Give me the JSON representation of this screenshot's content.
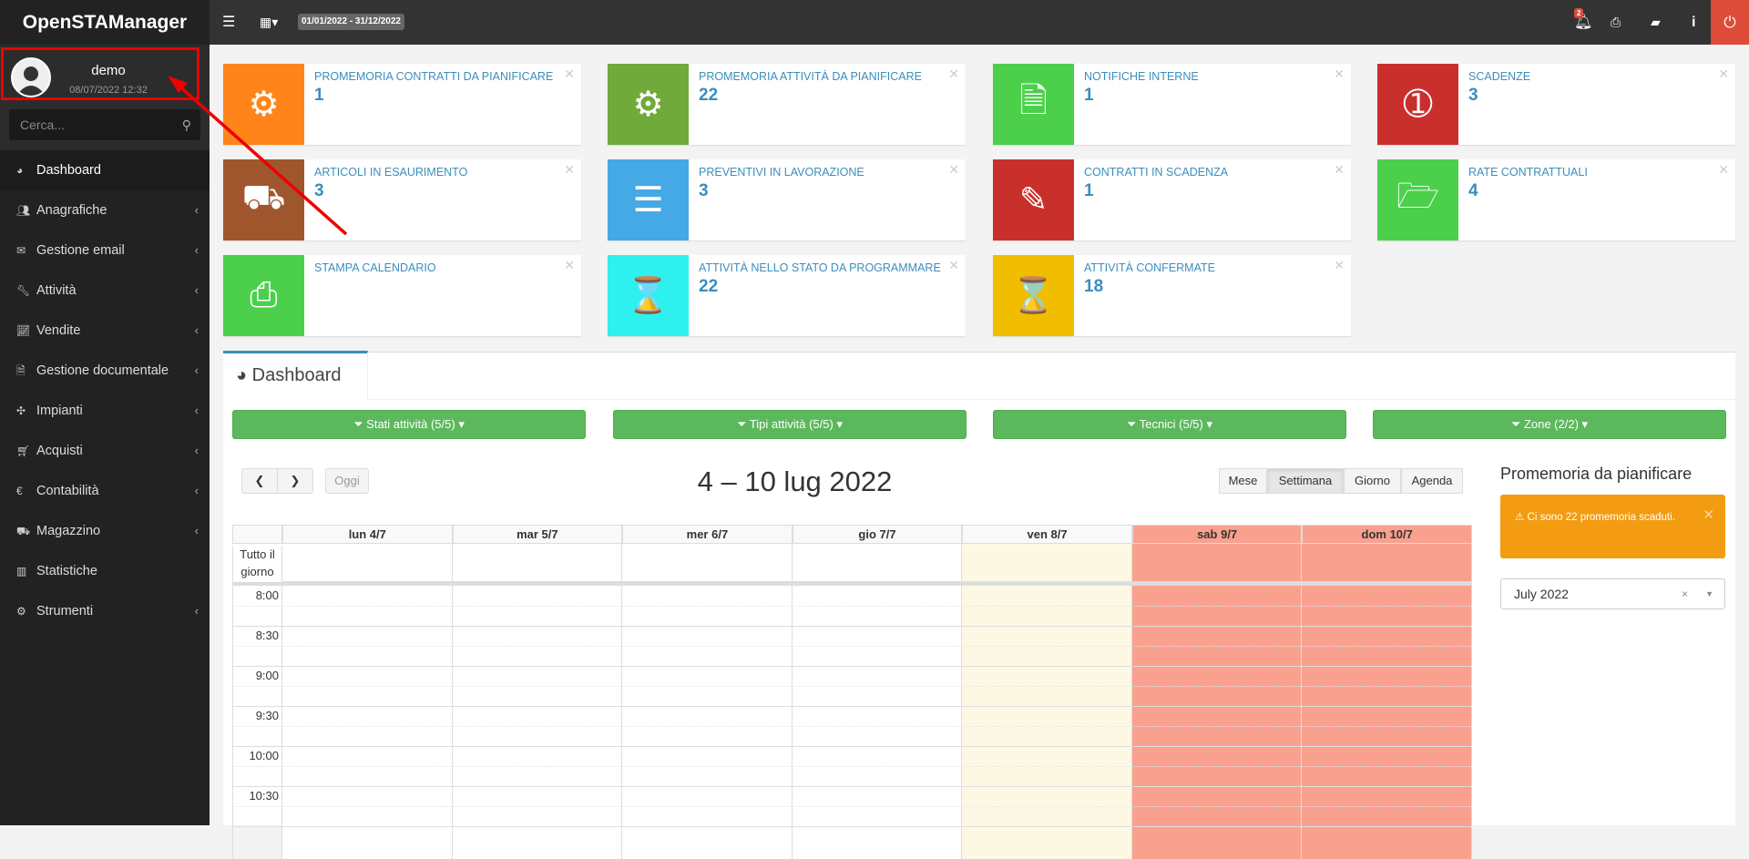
{
  "app": {
    "title": "OpenSTAManager",
    "date_range": "01/01/2022 - 31/12/2022",
    "notification_count": "2"
  },
  "user": {
    "name": "demo",
    "last_login": "08/07/2022 12:32"
  },
  "search": {
    "placeholder": "Cerca..."
  },
  "sidebar": {
    "items": [
      {
        "label": "Dashboard",
        "icon": "dashboard-icon",
        "sub": false
      },
      {
        "label": "Anagrafiche",
        "icon": "users-icon",
        "sub": true
      },
      {
        "label": "Gestione email",
        "icon": "envelope-icon",
        "sub": true
      },
      {
        "label": "Attività",
        "icon": "wrench-icon",
        "sub": true
      },
      {
        "label": "Vendite",
        "icon": "line-chart-icon",
        "sub": true
      },
      {
        "label": "Gestione documentale",
        "icon": "file-icon",
        "sub": true
      },
      {
        "label": "Impianti",
        "icon": "puzzle-icon",
        "sub": true
      },
      {
        "label": "Acquisti",
        "icon": "cart-icon",
        "sub": true
      },
      {
        "label": "Contabilità",
        "icon": "euro-icon",
        "sub": true
      },
      {
        "label": "Magazzino",
        "icon": "truck-icon",
        "sub": true
      },
      {
        "label": "Statistiche",
        "icon": "bar-chart-icon",
        "sub": false
      },
      {
        "label": "Strumenti",
        "icon": "cog-icon",
        "sub": true
      }
    ]
  },
  "boxes": [
    {
      "title": "PROMEMORIA CONTRATTI DA PIANIFICARE",
      "value": "1",
      "color": "#ff851b",
      "icon": "cog-icon",
      "glyph": "⚙"
    },
    {
      "title": "PROMEMORIA ATTIVITÀ DA PIANIFICARE",
      "value": "22",
      "color": "#6faa3a",
      "icon": "cogs-icon",
      "glyph": "⚙"
    },
    {
      "title": "NOTIFICHE INTERNE",
      "value": "1",
      "color": "#4cd04b",
      "icon": "file-text-icon",
      "glyph": "🗎"
    },
    {
      "title": "SCADENZE",
      "value": "3",
      "color": "#c9302c",
      "icon": "money-icon",
      "glyph": "➀"
    },
    {
      "title": "ARTICOLI IN ESAURIMENTO",
      "value": "3",
      "color": "#a0562d",
      "icon": "truck-icon",
      "glyph": "⛟"
    },
    {
      "title": "PREVENTIVI IN LAVORAZIONE",
      "value": "3",
      "color": "#45a9e6",
      "icon": "server-icon",
      "glyph": "☰"
    },
    {
      "title": "CONTRATTI IN SCADENZA",
      "value": "1",
      "color": "#c9302c",
      "icon": "edit-icon",
      "glyph": "✎"
    },
    {
      "title": "RATE CONTRATTUALI",
      "value": "4",
      "color": "#4cd04b",
      "icon": "folder-open-icon",
      "glyph": "🗁"
    },
    {
      "title": "STAMPA CALENDARIO",
      "value": "",
      "color": "#4cd04b",
      "icon": "print-icon",
      "glyph": "⎙"
    },
    {
      "title": "ATTIVITÀ NELLO STATO DA PROGRAMMARE",
      "value": "22",
      "color": "#2ef0ee",
      "icon": "hourglass-icon",
      "glyph": "⌛"
    },
    {
      "title": "ATTIVITÀ CONFERMATE",
      "value": "18",
      "color": "#f0bd00",
      "icon": "hourglass-icon",
      "glyph": "⌛"
    }
  ],
  "dashboard": {
    "tab": "Dashboard",
    "filters": [
      "Stati attività (5/5)",
      "Tipi attività (5/5)",
      "Tecnici (5/5)",
      "Zone (2/2)"
    ],
    "calendar": {
      "title": "4 – 10 lug 2022",
      "today": "Oggi",
      "views": [
        "Mese",
        "Settimana",
        "Giorno",
        "Agenda"
      ],
      "active_view": "Settimana",
      "days": [
        {
          "label": "lun 4/7",
          "type": "normal"
        },
        {
          "label": "mar 5/7",
          "type": "normal"
        },
        {
          "label": "mer 6/7",
          "type": "normal"
        },
        {
          "label": "gio 7/7",
          "type": "normal"
        },
        {
          "label": "ven 8/7",
          "type": "today"
        },
        {
          "label": "sab 9/7",
          "type": "weekend"
        },
        {
          "label": "dom 10/7",
          "type": "weekend"
        }
      ],
      "all_day": "Tutto il giorno",
      "times": [
        "8:00",
        "8:30",
        "9:00",
        "9:30",
        "10:00",
        "10:30"
      ]
    },
    "reminders": {
      "title": "Promemoria da pianificare",
      "alert": "Ci sono 22 promemoria scaduti.",
      "month": "July 2022"
    }
  }
}
